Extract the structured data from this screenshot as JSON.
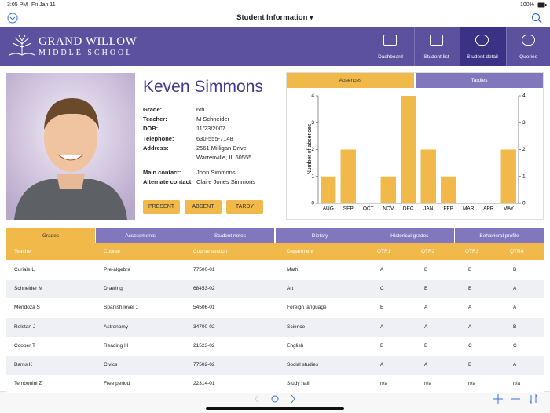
{
  "status_bar": {
    "time": "3:05 PM",
    "date": "Fri Jan 11",
    "battery": "100%"
  },
  "nav_bar": {
    "title": "Student Information"
  },
  "header": {
    "logo_line1": "GRAND WILLOW",
    "logo_line2": "MIDDLE SCHOOL",
    "tabs": [
      {
        "label": "Dashboard",
        "active": false
      },
      {
        "label": "Student list",
        "active": false
      },
      {
        "label": "Student detail",
        "active": true
      },
      {
        "label": "Queries",
        "active": false
      }
    ]
  },
  "student": {
    "name": "Keven Simmons",
    "fields": [
      {
        "label": "Grade:",
        "lines": [
          "6th"
        ]
      },
      {
        "label": "Teacher:",
        "lines": [
          "M Schneider"
        ]
      },
      {
        "label": "DOB:",
        "lines": [
          "11/23/2007"
        ]
      },
      {
        "label": "Telephone:",
        "lines": [
          "630-555-7148"
        ]
      },
      {
        "label": "Address:",
        "lines": [
          "2561 Milligan Drive",
          "Warrenville, IL  60555"
        ]
      }
    ],
    "contacts": [
      {
        "label": "Main contact:",
        "lines": [
          "John Simmons"
        ]
      },
      {
        "label": "Alternate contact:",
        "lines": [
          "Claire Jones Simmons"
        ]
      }
    ],
    "buttons": [
      "PRESENT",
      "ABSENT",
      "TARDY"
    ]
  },
  "chart_tabs": [
    {
      "label": "Absences",
      "active": true
    },
    {
      "label": "Tardies",
      "active": false
    }
  ],
  "chart_data": {
    "type": "bar",
    "y_label": "Number of absences",
    "categories": [
      "AUG",
      "SEP",
      "OCT",
      "NOV",
      "DEC",
      "JAN",
      "FEB",
      "MAR",
      "APR",
      "MAY"
    ],
    "values": [
      1,
      2,
      0,
      1,
      4,
      2,
      1,
      0,
      0,
      2
    ],
    "color": "#f0b94a",
    "ylim": [
      0,
      4
    ],
    "yticks": [
      0,
      1,
      2,
      3,
      4
    ],
    "grid": false
  },
  "table": {
    "tabs": [
      {
        "label": "Grades",
        "active": true
      },
      {
        "label": "Assessments",
        "active": false
      },
      {
        "label": "Student notes",
        "active": false
      },
      {
        "label": "Dietary",
        "active": false
      },
      {
        "label": "Historical grades",
        "active": false
      },
      {
        "label": "Behavioral profile",
        "active": false
      }
    ],
    "columns": [
      "Teacher",
      "Course",
      "Course section",
      "Department",
      "QTR1",
      "QTR2",
      "QTR3",
      "QTR4"
    ],
    "rows": [
      [
        "Curiale L",
        "Pre-algebra",
        "77500-01",
        "Math",
        "A",
        "B",
        "B",
        "B"
      ],
      [
        "Schneider M",
        "Drawing",
        "68453-02",
        "Art",
        "C",
        "B",
        "B",
        "A"
      ],
      [
        "Mendoza S",
        "Spanish level 1",
        "54506-01",
        "Foreign language",
        "B",
        "A",
        "A",
        "A"
      ],
      [
        "Rolstan J",
        "Astronomy",
        "34700-02",
        "Science",
        "A",
        "A",
        "A",
        "B"
      ],
      [
        "Cooper T",
        "Reading III",
        "21523-02",
        "English",
        "B",
        "B",
        "C",
        "C"
      ],
      [
        "Barns K",
        "Civics",
        "77502-02",
        "Social studies",
        "A",
        "A",
        "B",
        "A"
      ],
      [
        "Tembonini Z",
        "Free period",
        "22314-01",
        "Study hall",
        "n/a",
        "n/a",
        "n/a",
        "n/a"
      ]
    ]
  }
}
